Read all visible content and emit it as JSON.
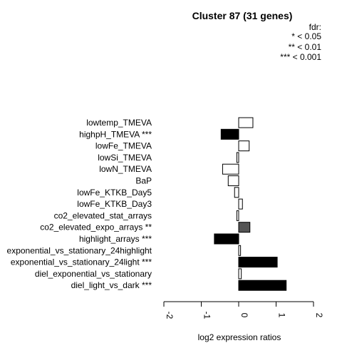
{
  "chart_data": {
    "type": "bar",
    "orientation": "horizontal",
    "title": "Cluster 87 (31 genes)",
    "xlabel": "log2 expression ratios",
    "ylabel": "",
    "xlim": [
      -2,
      2
    ],
    "x_ticks": [
      "-2",
      "-1",
      "0",
      "1",
      "2"
    ],
    "x_tick_values": [
      -2,
      -1,
      0,
      1,
      2
    ],
    "grid": false,
    "legend": {
      "placement": "top-right",
      "title": "fdr:",
      "entries": [
        "* < 0.05",
        "** < 0.01",
        "*** < 0.001"
      ]
    },
    "colors": {
      "none": "#ffffff",
      "sig2": "#555555",
      "sig3": "#000000",
      "stroke": "#000000"
    },
    "bars": [
      {
        "label": "lowtemp_TMEVA",
        "value": 0.38,
        "significance": ""
      },
      {
        "label": "highpH_TMEVA ***",
        "value": -0.47,
        "significance": "***"
      },
      {
        "label": "lowFe_TMEVA",
        "value": 0.28,
        "significance": ""
      },
      {
        "label": "lowSi_TMEVA",
        "value": -0.05,
        "significance": ""
      },
      {
        "label": "lowN_TMEVA",
        "value": -0.43,
        "significance": ""
      },
      {
        "label": "BaP",
        "value": -0.28,
        "significance": ""
      },
      {
        "label": "lowFe_KTKB_Day5",
        "value": -0.11,
        "significance": ""
      },
      {
        "label": "lowFe_KTKB_Day3",
        "value": 0.1,
        "significance": ""
      },
      {
        "label": "co2_elevated_stat_arrays",
        "value": -0.05,
        "significance": ""
      },
      {
        "label": "co2_elevated_expo_arrays **",
        "value": 0.3,
        "significance": "**"
      },
      {
        "label": "highlight_arrays ***",
        "value": -0.65,
        "significance": "***"
      },
      {
        "label": "exponential_vs_stationary_24highlight",
        "value": 0.05,
        "significance": ""
      },
      {
        "label": "exponential_vs_stationary_24light ***",
        "value": 1.03,
        "significance": "***"
      },
      {
        "label": "diel_exponential_vs_stationary",
        "value": 0.07,
        "significance": ""
      },
      {
        "label": "diel_light_vs_dark ***",
        "value": 1.27,
        "significance": "***"
      }
    ]
  }
}
